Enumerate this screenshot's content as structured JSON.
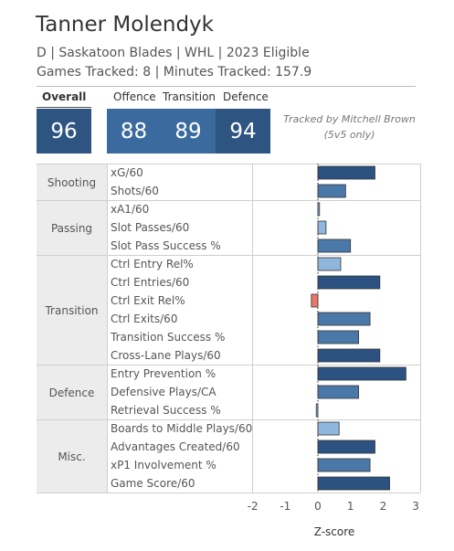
{
  "player": {
    "name": "Tanner Molendyk",
    "info": "D | Saskatoon Blades | WHL | 2023 Eligible",
    "tracked": "Games Tracked: 8 | Minutes Tracked: 157.9"
  },
  "scores": {
    "overall_label": "Overall",
    "overall_value": "96",
    "offence_label": "Offence",
    "offence_value": "88",
    "transition_label": "Transition",
    "transition_value": "89",
    "defence_label": "Defence",
    "defence_value": "94"
  },
  "credit": {
    "line1": "Tracked by Mitchell Brown",
    "line2": "(5v5 only)"
  },
  "colors": {
    "tile_dark": "#2e5482",
    "tile_mid": "#3a6a9e",
    "bar_dark": "#2c5281",
    "bar_mid": "#4a78a8",
    "bar_light": "#8fb7dd",
    "bar_negative": "#e9796a"
  },
  "chart_data": {
    "type": "bar",
    "orientation": "horizontal",
    "xlabel": "Z-score",
    "xlim": [
      -2.4,
      3
    ],
    "xticks": [
      -2,
      -1,
      0,
      1,
      2,
      3
    ],
    "groups": [
      {
        "name": "Shooting",
        "metrics": [
          {
            "label": "xG/60",
            "value": 1.75,
            "shade": "dark"
          },
          {
            "label": "Shots/60",
            "value": 0.85,
            "shade": "mid"
          }
        ]
      },
      {
        "name": "Passing",
        "metrics": [
          {
            "label": "xA1/60",
            "value": 0.05,
            "shade": "light"
          },
          {
            "label": "Slot Passes/60",
            "value": 0.25,
            "shade": "light"
          },
          {
            "label": "Slot Pass Success %",
            "value": 1.0,
            "shade": "mid"
          }
        ]
      },
      {
        "name": "Transition",
        "metrics": [
          {
            "label": "Ctrl Entry Rel%",
            "value": 0.7,
            "shade": "light"
          },
          {
            "label": "Ctrl Entries/60",
            "value": 1.9,
            "shade": "dark"
          },
          {
            "label": "Ctrl Exit Rel%",
            "value": -0.2,
            "shade": "negative"
          },
          {
            "label": "Ctrl Exits/60",
            "value": 1.6,
            "shade": "mid"
          },
          {
            "label": "Transition Success %",
            "value": 1.25,
            "shade": "mid"
          },
          {
            "label": "Cross-Lane Plays/60",
            "value": 1.9,
            "shade": "dark"
          }
        ]
      },
      {
        "name": "Defence",
        "metrics": [
          {
            "label": "Entry Prevention %",
            "value": 2.7,
            "shade": "dark"
          },
          {
            "label": "Defensive Plays/CA",
            "value": 1.25,
            "shade": "mid"
          },
          {
            "label": "Retrieval Success %",
            "value": -0.05,
            "shade": "light"
          }
        ]
      },
      {
        "name": "Misc.",
        "metrics": [
          {
            "label": "Boards to Middle Plays/60",
            "value": 0.65,
            "shade": "light"
          },
          {
            "label": "Advantages Created/60",
            "value": 1.75,
            "shade": "dark"
          },
          {
            "label": "xP1 Involvement %",
            "value": 1.6,
            "shade": "mid"
          },
          {
            "label": "Game Score/60",
            "value": 2.2,
            "shade": "dark"
          }
        ]
      }
    ]
  }
}
